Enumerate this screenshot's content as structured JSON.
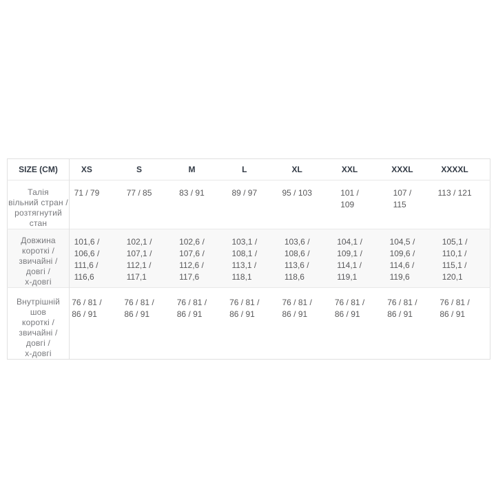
{
  "size_chart": {
    "columns": [
      "SIZE (CM)",
      "XS",
      "S",
      "M",
      "L",
      "XL",
      "XXL",
      "XXXL",
      "XXXXL"
    ],
    "rows": [
      {
        "id": "waist",
        "label_lines": [
          "Талія",
          "вільний стран /",
          "розтягнутий стан"
        ],
        "values": [
          [
            "71 / 79"
          ],
          [
            "77 / 85"
          ],
          [
            "83 / 91"
          ],
          [
            "89 / 97"
          ],
          [
            "95 / 103"
          ],
          [
            "101 /",
            "109"
          ],
          [
            "107 /",
            "115"
          ],
          [
            "113 / 121"
          ]
        ]
      },
      {
        "id": "length",
        "label_lines": [
          "Довжина",
          "короткі /",
          "звичайні /",
          "довгі /",
          "х-довгі"
        ],
        "values": [
          [
            "101,6 /",
            "106,6 /",
            "111,6 /",
            "116,6"
          ],
          [
            "102,1 /",
            "107,1 /",
            "112,1 /",
            "117,1"
          ],
          [
            "102,6 /",
            "107,6 /",
            "112,6 /",
            "117,6"
          ],
          [
            "103,1 /",
            "108,1 /",
            "113,1 /",
            "118,1"
          ],
          [
            "103,6 /",
            "108,6 /",
            "113,6 /",
            "118,6"
          ],
          [
            "104,1 /",
            "109,1 /",
            "114,1 /",
            "119,1"
          ],
          [
            "104,5 /",
            "109,6 /",
            "114,6 /",
            "119,6"
          ],
          [
            "105,1 /",
            "110,1 /",
            "115,1 /",
            "120,1"
          ]
        ]
      },
      {
        "id": "inseam",
        "label_lines": [
          "Внутрішній шов",
          "короткі /",
          "звичайні /",
          "довгі /",
          "х-довгі"
        ],
        "values": [
          [
            "76 / 81 /",
            "86 / 91"
          ],
          [
            "76 / 81 /",
            "86 / 91"
          ],
          [
            "76 / 81 /",
            "86 / 91"
          ],
          [
            "76 / 81 /",
            "86 / 91"
          ],
          [
            "76 / 81 /",
            "86 / 91"
          ],
          [
            "76 / 81 /",
            "86 / 91"
          ],
          [
            "76 / 81 /",
            "86 / 91"
          ],
          [
            "76 / 81 /",
            "86 / 91"
          ]
        ]
      }
    ],
    "colors": {
      "header_text": "#333b46",
      "value_text": "#58585a",
      "label_text": "#77787c",
      "row_stripe": "#f8f8f8",
      "outer_border": "#e0e0e0",
      "inner_border": "#e8e8e8"
    }
  }
}
